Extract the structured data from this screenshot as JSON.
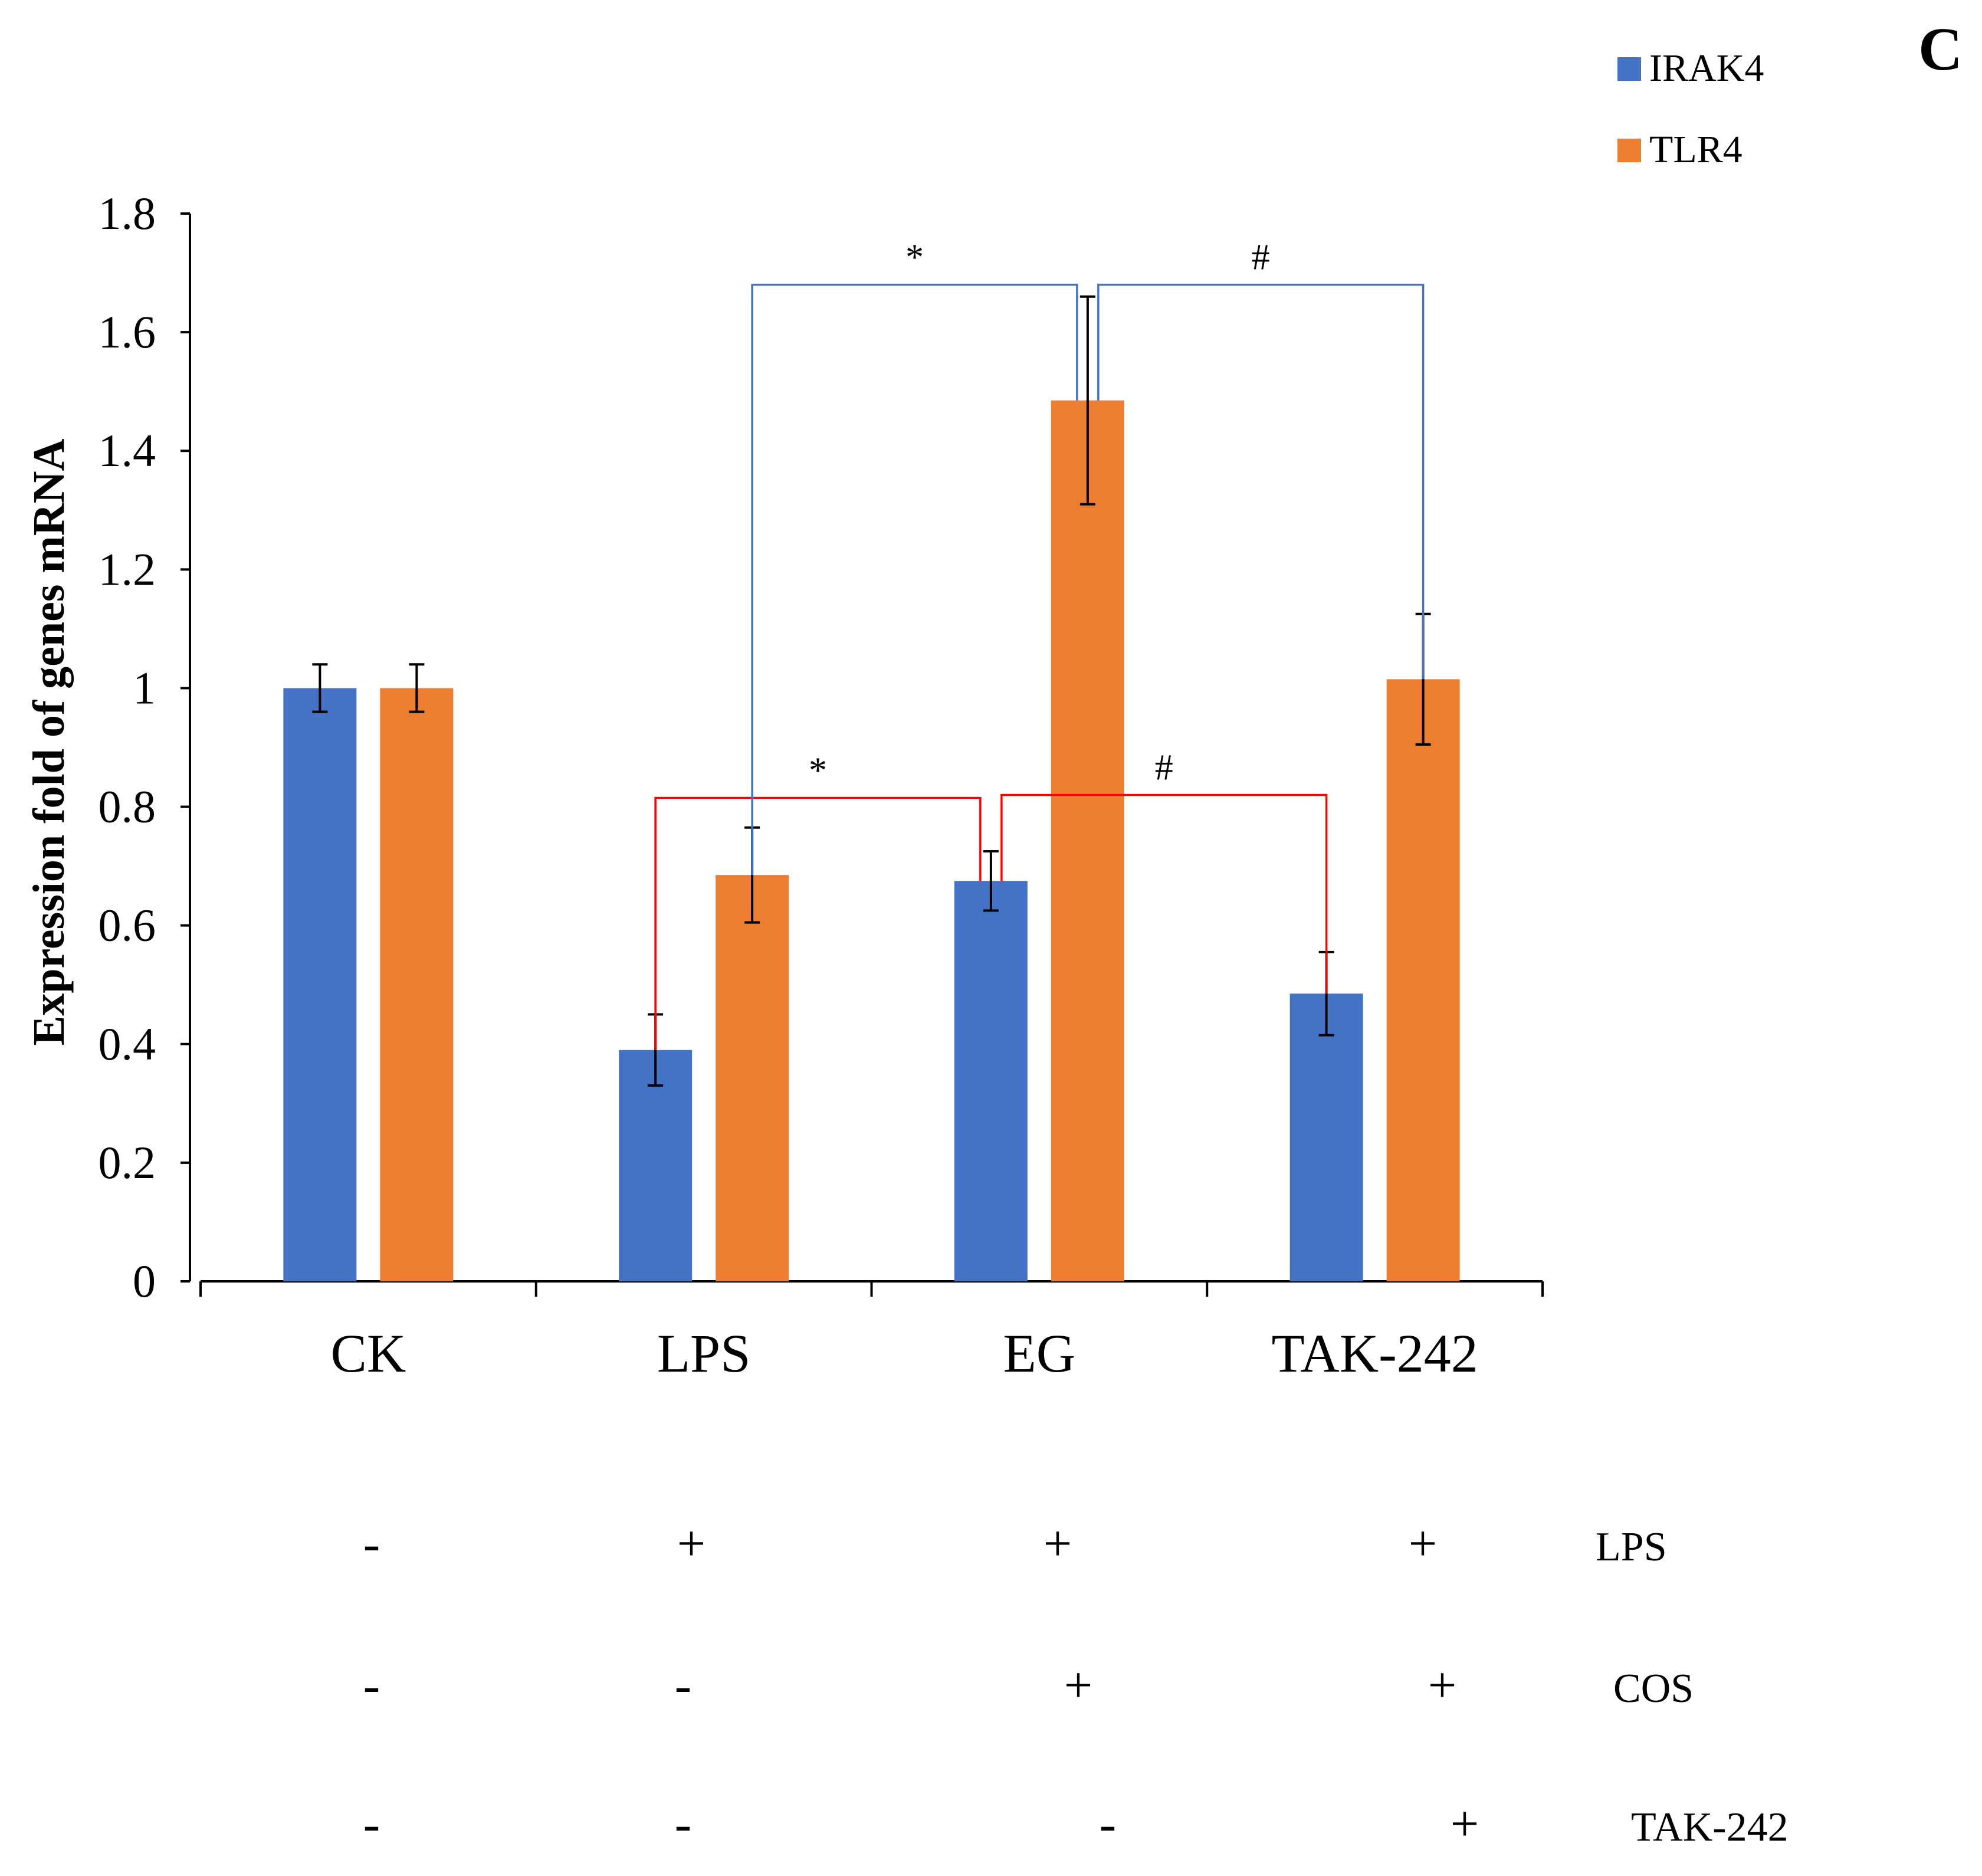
{
  "chart_data": {
    "type": "bar",
    "panel_label": "C",
    "title": "",
    "xlabel": "",
    "ylabel": "Expression fold of genes mRNA",
    "ylim": [
      0,
      1.8
    ],
    "yticks": [
      "0",
      "0.2",
      "0.4",
      "0.6",
      "0.8",
      "1",
      "1.2",
      "1.4",
      "1.6",
      "1.8"
    ],
    "categories": [
      "CK",
      "LPS",
      "EG",
      "TAK-242"
    ],
    "series": [
      {
        "name": "IRAK4",
        "color": "#4472C4",
        "values": [
          1.0,
          0.39,
          0.675,
          0.485
        ],
        "errors": [
          0.04,
          0.06,
          0.05,
          0.07
        ]
      },
      {
        "name": "TLR4",
        "color": "#ED7D31",
        "values": [
          1.0,
          0.685,
          1.485,
          1.015
        ],
        "errors": [
          0.04,
          0.08,
          0.175,
          0.11
        ]
      }
    ],
    "legend_position": "top-right",
    "significance": [
      {
        "label": "*",
        "series": "IRAK4",
        "from": "LPS",
        "to": "EG",
        "height": 0.815,
        "color": "#FF0000"
      },
      {
        "label": "#",
        "series": "IRAK4",
        "from": "EG",
        "to": "TAK-242",
        "height": 0.82,
        "color": "#FF0000"
      },
      {
        "label": "*",
        "series": "TLR4",
        "from": "LPS",
        "to": "EG",
        "height": 1.68,
        "color": "#4472C4"
      },
      {
        "label": "#",
        "series": "TLR4",
        "from": "EG",
        "to": "TAK-242",
        "height": 1.68,
        "color": "#4472C4"
      }
    ],
    "treatments": [
      {
        "name": "LPS",
        "signs": [
          "-",
          "+",
          "+",
          "+"
        ]
      },
      {
        "name": "COS",
        "signs": [
          "-",
          "-",
          "+",
          "+"
        ]
      },
      {
        "name": "TAK-242",
        "signs": [
          "-",
          "-",
          "-",
          "+"
        ]
      }
    ]
  }
}
